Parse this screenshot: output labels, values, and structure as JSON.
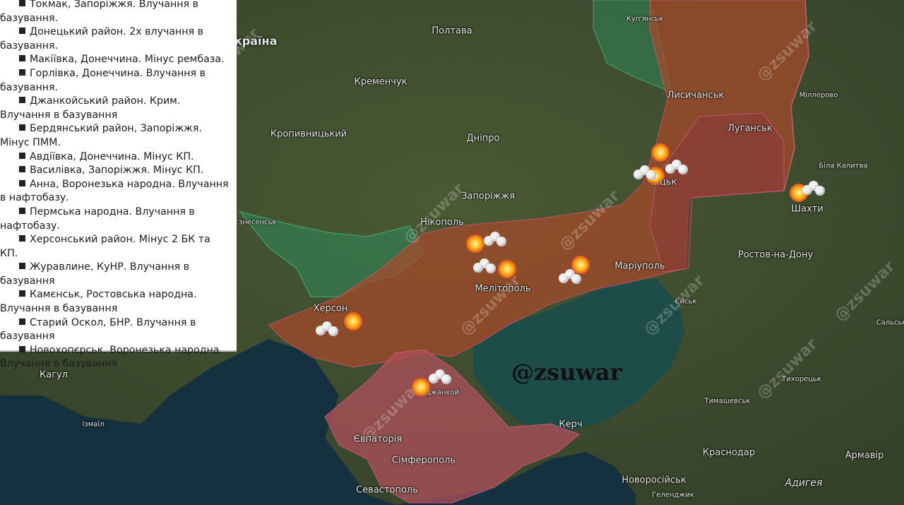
{
  "strike_list": [
    "Токмак, Запоріжжя. Влучання в базування.",
    "Донецький район. 2х влучання в базування.",
    "Макіївка, Донеччина. Мінус рембаза.",
    "Горлівка, Донеччина. Влучання в базування.",
    "Джанкойський район. Крим. Влучання в базування",
    "Бердянський район, Запоріжжя. Мінус ПММ.",
    "Авдіївка, Донеччина. Мінус КП.",
    "Василівка, Запоріжжя. Мінус КП.",
    "Анна, Воронезька народна. Влучання в нафтобазу.",
    "Пермська народна. Влучання в нафтобазу.",
    "Херсонський район. Мінус 2 БК та КП.",
    "Журавлине, КуНР. Влучання в базування",
    "Камєнськ, Ростовська народна. Влучання в базування",
    "Старий Оскол, БНР. Влучання в базування",
    "Новохопєрськ, Воронезька народна. Влучання в базування"
  ],
  "map_labels": {
    "ukraine": "Україна",
    "poltava": "Полтава",
    "kupiansk": "Куп'янськ",
    "kremenchuk": "Кременчук",
    "lysychansk": "Лисичанськ",
    "millerovo": "Міллерово",
    "kropyvnytskyi": "Кропивницький",
    "dnipro": "Дніпро",
    "luhansk": "Луганськ",
    "bila_kalytva": "Біла Калитва",
    "donetsk": "...цьк",
    "zaporizhzhia": "Запоріжжя",
    "shakhty": "Шахти",
    "voznesensk": "...знесенськ",
    "nikopol": "Нікополь",
    "rostov": "Ростов-на-Дону",
    "mariupol": "Маріуполь",
    "melitopol": "Мелітополь",
    "yeisk": "Єйськ",
    "salsk": "Сальськ",
    "kherson": "Херсон",
    "kahul": "Кагул",
    "dzhankoi": "Джанкой",
    "tikhoretsk": "Тихорецьк",
    "izmail": "Ізмаїл",
    "timashevsk": "Тимашевськ",
    "kerch": "Керч",
    "yevpatoria": "Євпаторія",
    "krasnodar": "Краснодар",
    "armavir": "Армавір",
    "simferopol": "Сімферополь",
    "adygea": "Адигея",
    "novorossiysk": "Новоросійськ",
    "sevastopol": "Севастополь",
    "gelendzhik": "Геленджик"
  },
  "watermark": "@zsuwar",
  "brand": "@zsuwar",
  "colors": {
    "occupied": "#b0502e",
    "azov_sea": "#1d4a48",
    "black_sea": "#142a3a",
    "land": "#3e4d2d",
    "ukraine_green": "#2f9e6a"
  },
  "icons": [
    "explosion-icon",
    "smoke-cloud-icon"
  ]
}
